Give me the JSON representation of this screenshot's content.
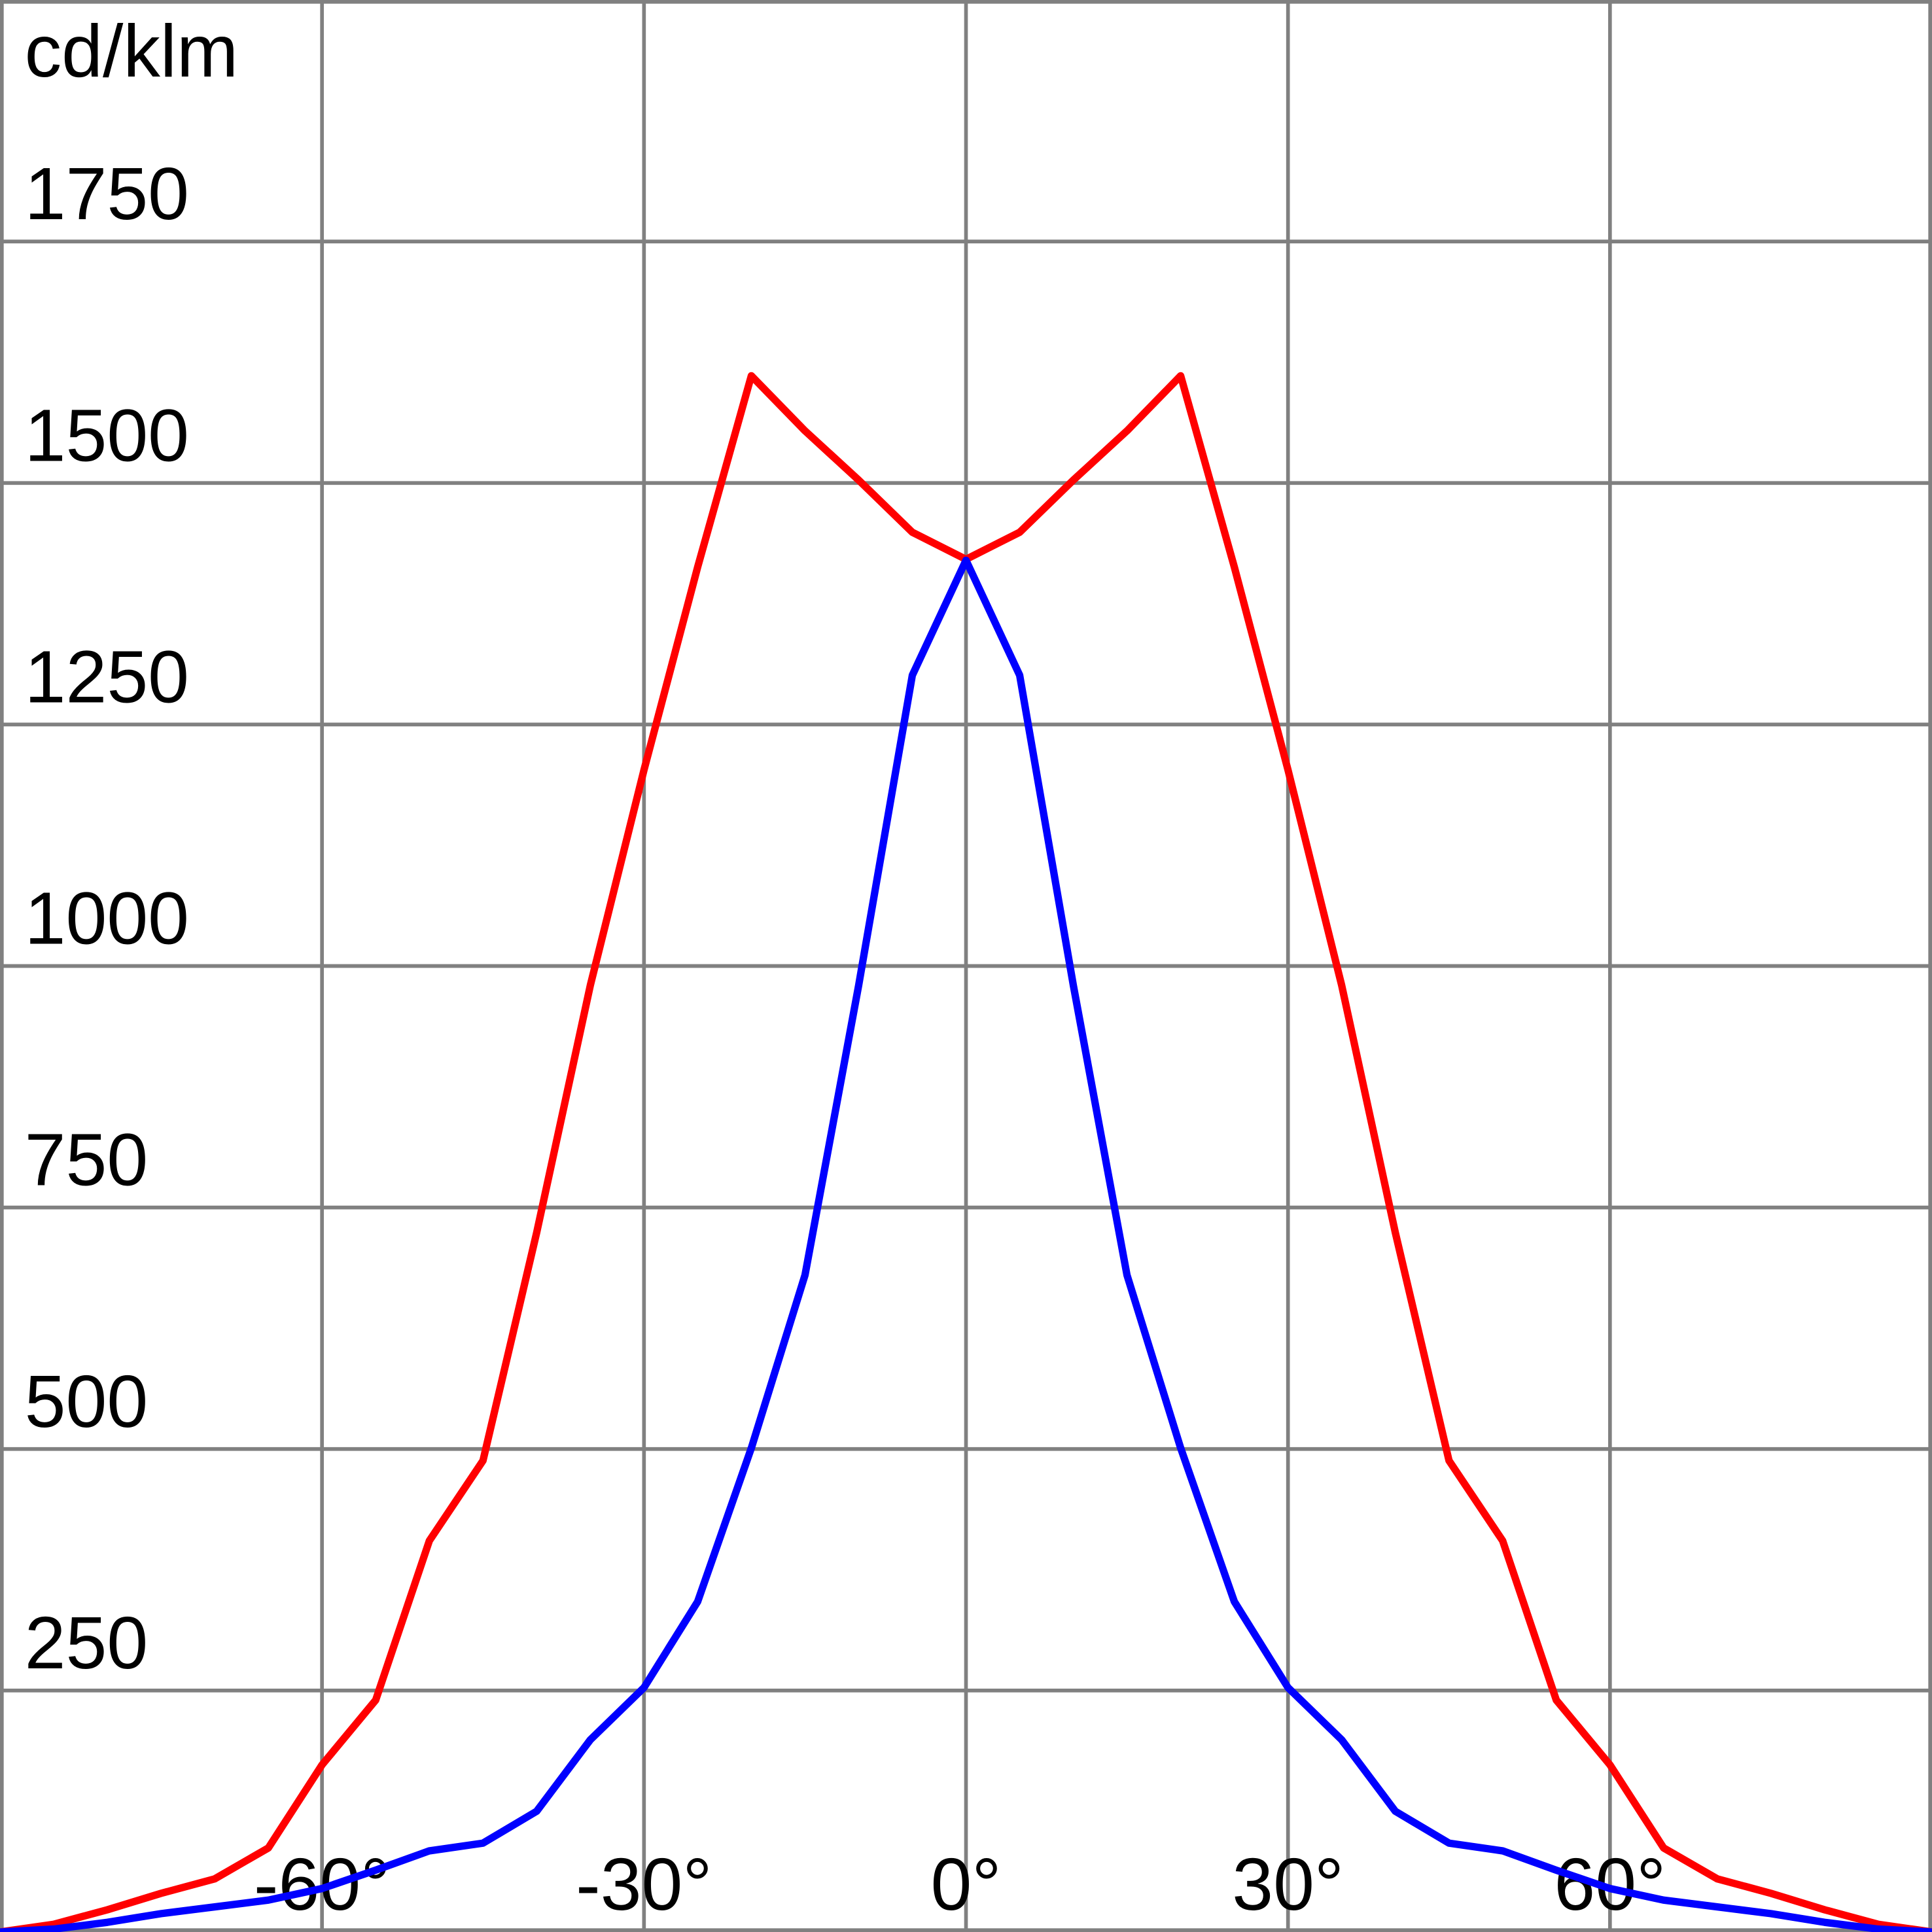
{
  "chart_data": {
    "type": "line",
    "y_label": "cd/klm",
    "x": [
      -90,
      -85,
      -80,
      -75,
      -70,
      -65,
      -60,
      -55,
      -50,
      -45,
      -40,
      -35,
      -30,
      -25,
      -20,
      -15,
      -10,
      -5,
      0,
      5,
      10,
      15,
      20,
      25,
      30,
      35,
      40,
      45,
      50,
      55,
      60,
      65,
      70,
      75,
      80,
      85,
      90
    ],
    "series": [
      {
        "color": "#ff0000",
        "values": [
          0,
          8,
          23,
          40,
          55,
          87,
          173,
          240,
          405,
          488,
          724,
          980,
          1203,
          1413,
          1611,
          1554,
          1503,
          1449,
          1421,
          1449,
          1503,
          1554,
          1611,
          1413,
          1203,
          980,
          724,
          488,
          405,
          240,
          173,
          87,
          55,
          40,
          23,
          8,
          0
        ]
      },
      {
        "color": "#0000ff",
        "values": [
          0,
          3,
          10,
          19,
          26,
          33,
          45,
          64,
          84,
          92,
          125,
          199,
          253,
          342,
          501,
          680,
          980,
          1301,
          1420,
          1301,
          980,
          680,
          501,
          342,
          253,
          199,
          125,
          92,
          84,
          64,
          45,
          33,
          26,
          19,
          10,
          3,
          0
        ]
      }
    ],
    "xlim": [
      -90,
      90
    ],
    "ylim": [
      0,
      2000
    ],
    "xticks": [
      {
        "value": -60,
        "label": "-60°"
      },
      {
        "value": -30,
        "label": "-30°"
      },
      {
        "value": 0,
        "label": "0°"
      },
      {
        "value": 30,
        "label": "30°"
      },
      {
        "value": 60,
        "label": "60°"
      }
    ],
    "yticks": [
      250,
      500,
      750,
      1000,
      1250,
      1500,
      1750
    ],
    "grid": true
  }
}
